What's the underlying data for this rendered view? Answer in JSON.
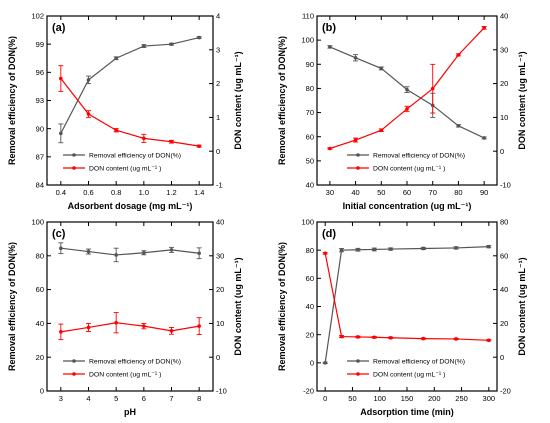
{
  "colors": {
    "removal": "#555555",
    "don": "#ff0000"
  },
  "chart_data": [
    {
      "type": "line",
      "panel_label": "(a)",
      "xlabel": "Adsorbent dosage (mg mL⁻¹)",
      "ylabel_left": "Removal efficiency of DON(%)",
      "ylabel_right": "DON content (ug mL⁻¹)",
      "x": [
        0.4,
        0.6,
        0.8,
        1.0,
        1.2,
        1.4
      ],
      "xlim": [
        0.3,
        1.5
      ],
      "xticks": [
        "0.4",
        "0.6",
        "0.8",
        "1.0",
        "1.2",
        "1.4"
      ],
      "ylim_left": [
        84,
        102
      ],
      "yticks_left": [
        "84",
        "87",
        "90",
        "93",
        "96",
        "99",
        "102"
      ],
      "ylim_right": [
        -1,
        4
      ],
      "yticks_right": [
        "-1",
        "0",
        "1",
        "2",
        "3",
        "4"
      ],
      "legend": [
        "Removal efficiency of DON(%)",
        "DON content (ug mL⁻¹ )"
      ],
      "legend_position": "bottom-right",
      "series": [
        {
          "name": "Removal efficiency of DON(%)",
          "axis": "left",
          "color": "#555555",
          "values": [
            89.5,
            95.2,
            97.5,
            98.8,
            99.0,
            99.7
          ],
          "errors": [
            1.0,
            0.4,
            0.15,
            0.15,
            0.1,
            0.1
          ]
        },
        {
          "name": "DON content (ug mL⁻¹ )",
          "axis": "right",
          "color": "#ff0000",
          "values": [
            2.15,
            1.1,
            0.62,
            0.38,
            0.28,
            0.15
          ],
          "errors": [
            0.38,
            0.1,
            0.05,
            0.12,
            0.04,
            0.03
          ]
        }
      ]
    },
    {
      "type": "line",
      "panel_label": "(b)",
      "xlabel": "Initial concentration (ug mL⁻¹)",
      "ylabel_left": "Removal efficiency of DON(%)",
      "ylabel_right": "DON content (ug mL⁻¹)",
      "x": [
        30,
        40,
        50,
        60,
        70,
        80,
        90
      ],
      "xlim": [
        25,
        95
      ],
      "xticks": [
        "30",
        "40",
        "50",
        "60",
        "70",
        "80",
        "90"
      ],
      "ylim_left": [
        40,
        110
      ],
      "yticks_left": [
        "40",
        "50",
        "60",
        "70",
        "80",
        "90",
        "100",
        "110"
      ],
      "ylim_right": [
        -10,
        40
      ],
      "yticks_right": [
        "-10",
        "0",
        "10",
        "20",
        "30",
        "40"
      ],
      "legend": [
        "Removal efficiency of DON(%)",
        "DON content (ug mL⁻¹ )"
      ],
      "legend_position": "bottom-right",
      "series": [
        {
          "name": "Removal efficiency of DON(%)",
          "axis": "left",
          "color": "#555555",
          "values": [
            97.2,
            92.7,
            88.3,
            79.5,
            73.0,
            64.5,
            59.5
          ],
          "errors": [
            0.5,
            1.3,
            0.6,
            1.2,
            5.0,
            0.5,
            0.4
          ]
        },
        {
          "name": "DON content (ug mL⁻¹ )",
          "axis": "right",
          "color": "#ff0000",
          "values": [
            0.8,
            3.3,
            6.2,
            12.5,
            18.5,
            28.5,
            36.5
          ],
          "errors": [
            0.2,
            0.6,
            0.4,
            0.8,
            7.2,
            0.3,
            0.4
          ]
        }
      ]
    },
    {
      "type": "line",
      "panel_label": "(c)",
      "xlabel": "pH",
      "ylabel_left": "Removal efficiency of DON(%)",
      "ylabel_right": "DON content (ug mL⁻¹)",
      "x": [
        3,
        4,
        5,
        6,
        7,
        8
      ],
      "xlim": [
        2.5,
        8.5
      ],
      "xticks": [
        "3",
        "4",
        "5",
        "6",
        "7",
        "8"
      ],
      "ylim_left": [
        0,
        100
      ],
      "yticks_left": [
        "0",
        "20",
        "40",
        "60",
        "80",
        "100"
      ],
      "ylim_right": [
        -10,
        40
      ],
      "yticks_right": [
        "-10",
        "0",
        "10",
        "20",
        "30",
        "40"
      ],
      "legend": [
        "Removal efficiency of DON(%)",
        "DON content (ug mL⁻¹ )"
      ],
      "legend_position": "bottom-right",
      "series": [
        {
          "name": "Removal efficiency of DON(%)",
          "axis": "left",
          "color": "#555555",
          "values": [
            84.5,
            82.5,
            80.5,
            81.8,
            83.5,
            81.5
          ],
          "errors": [
            3.2,
            1.5,
            4.0,
            1.2,
            1.5,
            3.2
          ]
        },
        {
          "name": "DON content (ug mL⁻¹ )",
          "axis": "right",
          "color": "#ff0000",
          "values": [
            7.5,
            8.8,
            10.2,
            9.2,
            7.8,
            9.2
          ],
          "errors": [
            2.3,
            1.2,
            3.0,
            0.8,
            1.0,
            2.5
          ]
        }
      ]
    },
    {
      "type": "line",
      "panel_label": "(d)",
      "xlabel": "Adsorption time (min)",
      "ylabel_left": "Removal efficiency of DON(%)",
      "ylabel_right": "DON content (ug mL⁻¹)",
      "x": [
        0,
        30,
        60,
        90,
        120,
        180,
        240,
        300
      ],
      "xlim": [
        -15,
        315
      ],
      "xticks": [
        "0",
        "50",
        "100",
        "150",
        "200",
        "250",
        "300"
      ],
      "xtick_values": [
        0,
        50,
        100,
        150,
        200,
        250,
        300
      ],
      "ylim_left": [
        -20,
        100
      ],
      "yticks_left": [
        "-20",
        "0",
        "20",
        "40",
        "60",
        "80",
        "100"
      ],
      "ylim_right": [
        -20,
        80
      ],
      "yticks_right": [
        "-20",
        "0",
        "20",
        "40",
        "60",
        "80"
      ],
      "legend": [
        "Removal efficiency of DON(%)",
        "DON content (ug mL⁻¹ )"
      ],
      "legend_position": "bottom-right",
      "series": [
        {
          "name": "Removal efficiency of DON(%)",
          "axis": "left",
          "color": "#555555",
          "values": [
            0,
            80.0,
            80.3,
            80.5,
            80.8,
            81.2,
            81.6,
            82.5
          ],
          "errors": [
            0.5,
            1.2,
            1.0,
            1.0,
            0.8,
            0.8,
            0.8,
            0.8
          ]
        },
        {
          "name": "DON content (ug mL⁻¹ )",
          "axis": "right",
          "color": "#ff0000",
          "values": [
            61.5,
            12.2,
            12.0,
            11.8,
            11.5,
            11.0,
            10.8,
            10.0
          ],
          "errors": [
            0.5,
            0.6,
            0.5,
            0.5,
            0.4,
            0.4,
            0.4,
            0.4
          ]
        }
      ]
    }
  ]
}
